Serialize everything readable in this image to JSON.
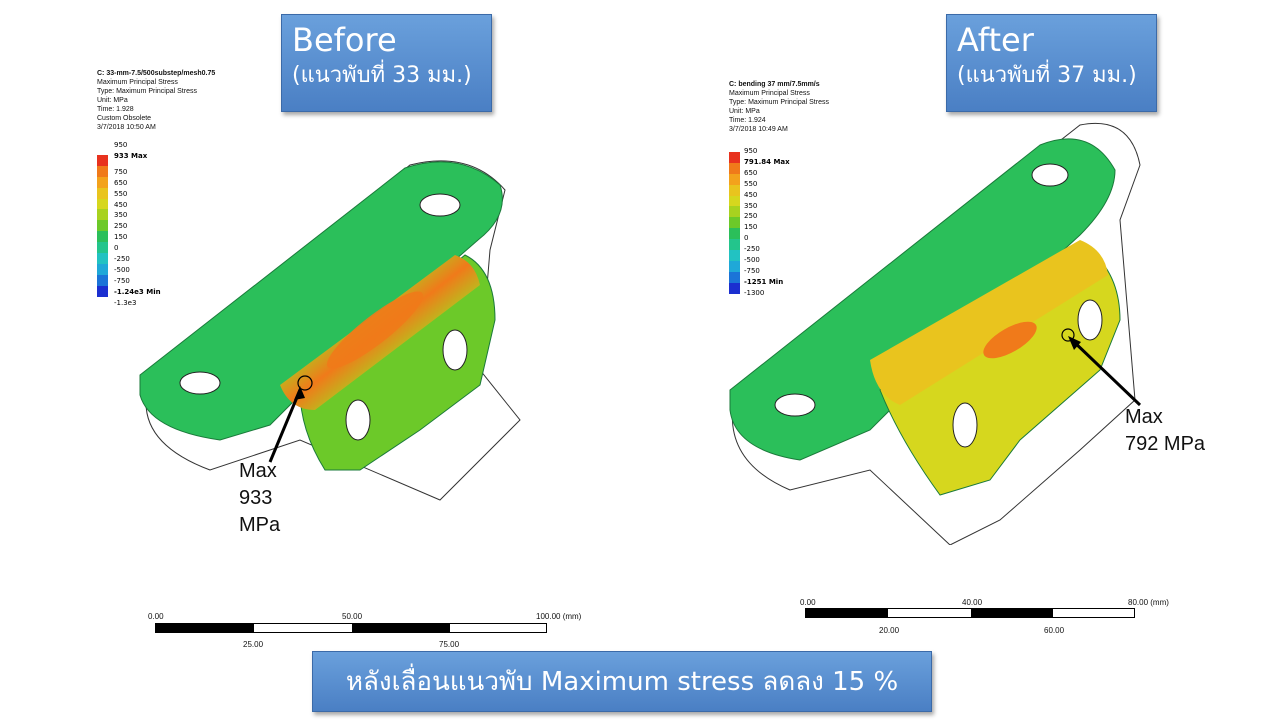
{
  "before": {
    "title": "Before",
    "subtitle": "(แนวพับที่ 33 มม.)",
    "legend_header": [
      "C: 33-mm-7.5/500substep/mesh0.75",
      "Maximum Principal Stress",
      "Type: Maximum Principal Stress",
      "Unit: MPa",
      "Time: 1.928",
      "Custom Obsolete",
      "3/7/2018 10:50 AM"
    ],
    "legend_ticks": [
      "950",
      "933 Max",
      "750",
      "650",
      "550",
      "450",
      "350",
      "250",
      "150",
      "0",
      "-250",
      "-500",
      "-750",
      "-1.24e3 Min",
      "-1.3e3"
    ],
    "callout": "Max\n933\nMPa",
    "scale": {
      "top": [
        "0.00",
        "50.00",
        "100.00 (mm)"
      ],
      "bottom": [
        "25.00",
        "75.00"
      ]
    }
  },
  "after": {
    "title": "After",
    "subtitle": "(แนวพับที่ 37 มม.)",
    "legend_header": [
      "C: bending 37 mm/7.5mm/s",
      "Maximum Principal Stress",
      "Type: Maximum Principal Stress",
      "Unit: MPa",
      "Time: 1.924",
      "3/7/2018 10:49 AM"
    ],
    "legend_ticks": [
      "950",
      "791.84 Max",
      "650",
      "550",
      "450",
      "350",
      "250",
      "150",
      "0",
      "-250",
      "-500",
      "-750",
      "-1251 Min",
      "-1300"
    ],
    "callout": "Max\n792 MPa",
    "scale": {
      "top": [
        "0.00",
        "40.00",
        "80.00 (mm)"
      ],
      "bottom": [
        "20.00",
        "60.00"
      ]
    }
  },
  "summary": "หลังเลื่อนแนวพับ Maximum stress ลดลง 15 %",
  "colors": {
    "box_blue": "#4f86c9",
    "stress_max": "#e8321e",
    "stress_high": "#f07a1a",
    "stress_mid": "#e4d21e",
    "stress_low": "#2bbf5a",
    "stress_min": "#1b2fd0"
  }
}
